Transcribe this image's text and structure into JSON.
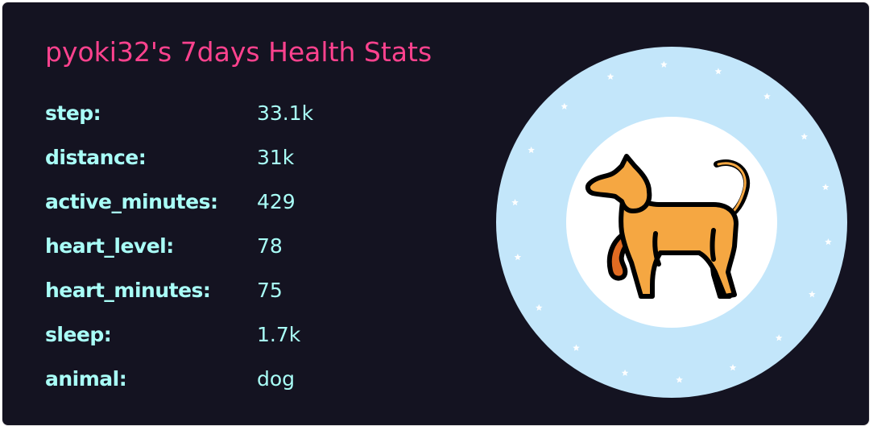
{
  "card": {
    "title": "pyoki32's 7days Health Stats",
    "stats": [
      {
        "label": "step:",
        "value": "33.1k"
      },
      {
        "label": "distance:",
        "value": "31k"
      },
      {
        "label": "active_minutes:",
        "value": "429"
      },
      {
        "label": "heart_level:",
        "value": "78"
      },
      {
        "label": "heart_minutes:",
        "value": "75"
      },
      {
        "label": "sleep:",
        "value": "1.7k"
      },
      {
        "label": "animal:",
        "value": "dog"
      }
    ]
  },
  "colors": {
    "background": "#141321",
    "title": "#fe428e",
    "text": "#a9fef7",
    "ring": "#c3e6fa",
    "inner": "#ffffff",
    "dog_body": "#f5a742",
    "dog_shadow": "#e06b22",
    "outline": "#000000"
  },
  "icons": {
    "avatar": "dog-icon"
  }
}
